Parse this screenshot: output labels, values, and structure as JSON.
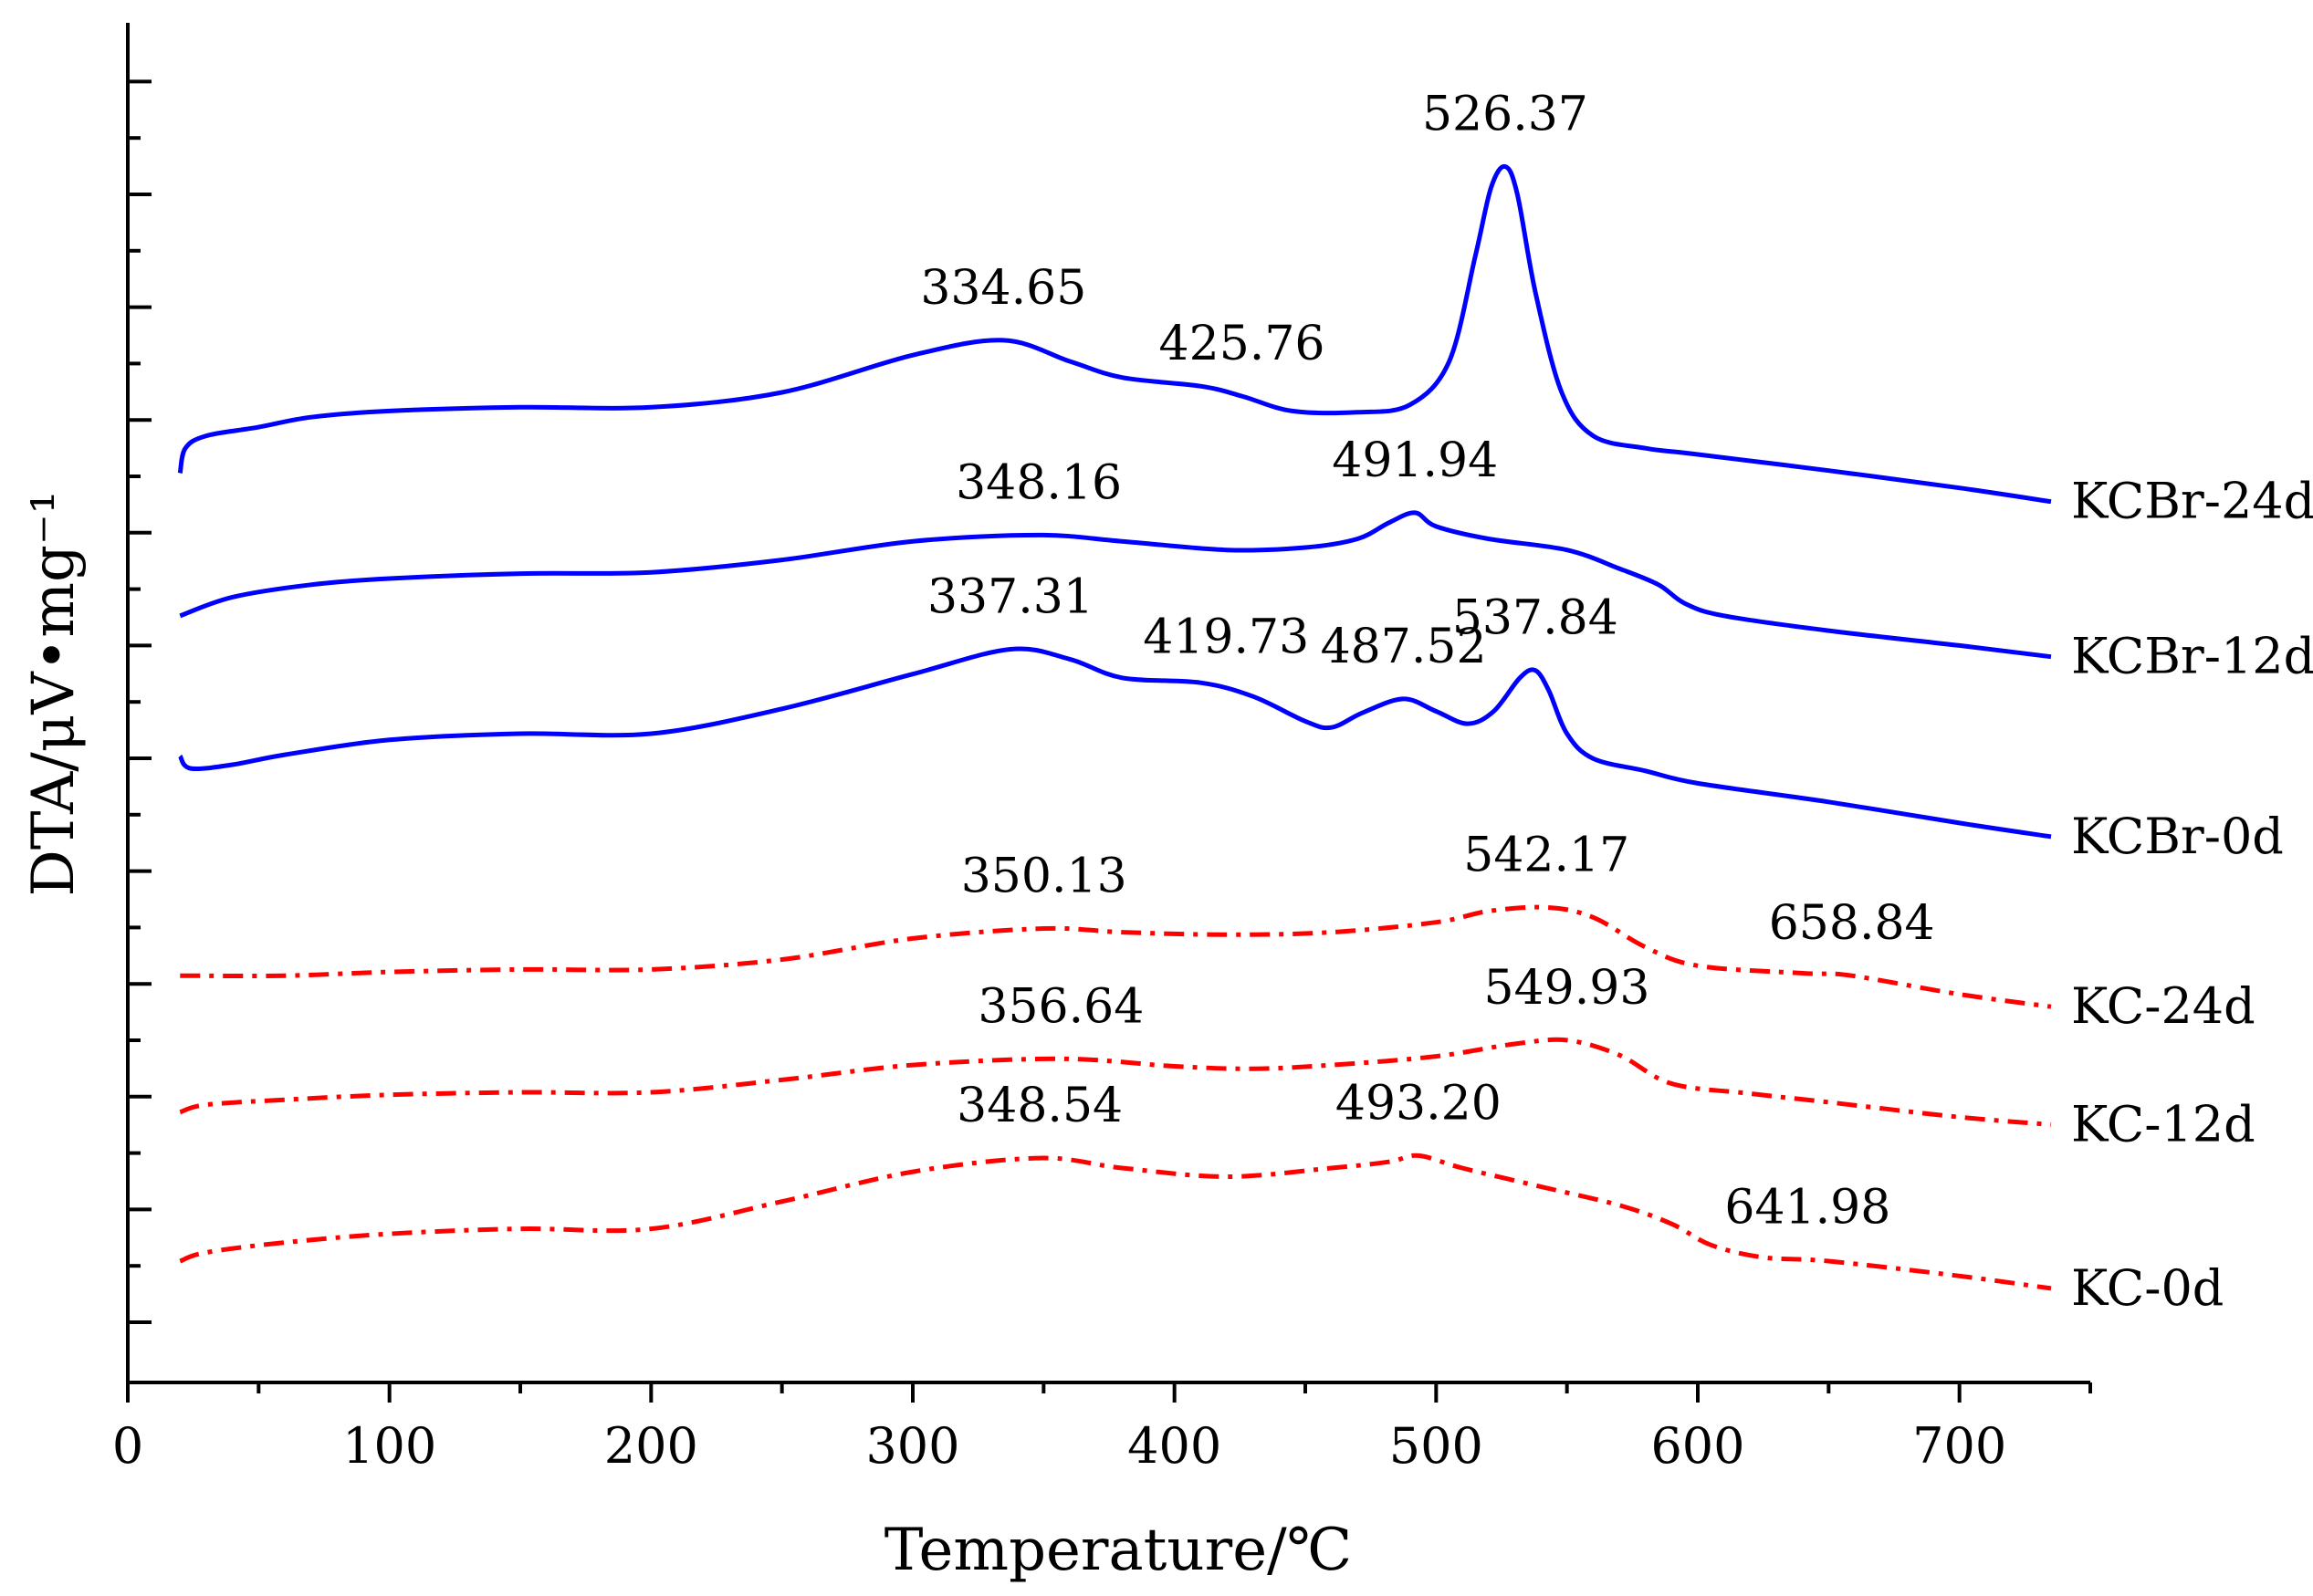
{
  "chart_data": {
    "type": "line",
    "title": "",
    "xlabel": "Temperature/℃",
    "ylabel": "DTA/μV•mg⁻¹",
    "xlim": [
      0,
      750
    ],
    "x_ticks": [
      0,
      100,
      200,
      300,
      400,
      500,
      600,
      700
    ],
    "x_tick_labels": [
      "0",
      "100",
      "200",
      "300",
      "400",
      "500",
      "600",
      "700"
    ],
    "ylim": [
      0,
      100
    ],
    "y_tick_labels_shown": false,
    "grid": false,
    "colors": {
      "KCBr": "#0000ff",
      "KC": "#ff0000",
      "axis": "#000000"
    },
    "series": [
      {
        "name": "KCBr-24d",
        "color": "#0000ff",
        "style": "solid",
        "label": "KCBr-24d",
        "points": [
          [
            20,
            68.5
          ],
          [
            22,
            70.5
          ],
          [
            30,
            71.5
          ],
          [
            50,
            72.2
          ],
          [
            70,
            73.0
          ],
          [
            100,
            73.5
          ],
          [
            150,
            73.8
          ],
          [
            200,
            73.8
          ],
          [
            250,
            75.0
          ],
          [
            300,
            78.0
          ],
          [
            334.65,
            79.2
          ],
          [
            360,
            77.5
          ],
          [
            380,
            76.2
          ],
          [
            410,
            75.5
          ],
          [
            425.76,
            74.7
          ],
          [
            445,
            73.5
          ],
          [
            470,
            73.4
          ],
          [
            490,
            74.0
          ],
          [
            505,
            77.5
          ],
          [
            515,
            86.0
          ],
          [
            521,
            91.5
          ],
          [
            526.37,
            93.2
          ],
          [
            531,
            91.0
          ],
          [
            538,
            83.0
          ],
          [
            548,
            75.0
          ],
          [
            560,
            71.5
          ],
          [
            580,
            70.5
          ],
          [
            600,
            70.0
          ],
          [
            650,
            68.7
          ],
          [
            700,
            67.3
          ],
          [
            735,
            66.2
          ]
        ],
        "peaks": [
          {
            "x": 334.65,
            "label": "334.65"
          },
          {
            "x": 425.76,
            "label": "425.76"
          },
          {
            "x": 526.37,
            "label": "526.37"
          }
        ]
      },
      {
        "name": "KCBr-12d",
        "color": "#0000ff",
        "style": "solid",
        "label": "KCBr-12d",
        "points": [
          [
            20,
            57.0
          ],
          [
            40,
            58.5
          ],
          [
            70,
            59.5
          ],
          [
            100,
            60.0
          ],
          [
            150,
            60.4
          ],
          [
            200,
            60.5
          ],
          [
            250,
            61.5
          ],
          [
            300,
            63.0
          ],
          [
            348.16,
            63.5
          ],
          [
            380,
            63.0
          ],
          [
            420,
            62.3
          ],
          [
            450,
            62.5
          ],
          [
            470,
            63.2
          ],
          [
            482,
            64.5
          ],
          [
            491.94,
            65.3
          ],
          [
            500,
            64.2
          ],
          [
            520,
            63.2
          ],
          [
            550,
            62.3
          ],
          [
            570,
            60.8
          ],
          [
            585,
            59.5
          ],
          [
            595,
            58.0
          ],
          [
            610,
            57.0
          ],
          [
            650,
            55.8
          ],
          [
            700,
            54.6
          ],
          [
            735,
            53.7
          ]
        ],
        "peaks": [
          {
            "x": 348.16,
            "label": "348.16"
          },
          {
            "x": 491.94,
            "label": "491.94"
          }
        ]
      },
      {
        "name": "KCBr-0d",
        "color": "#0000ff",
        "style": "solid",
        "label": "KCBr-0d",
        "points": [
          [
            20,
            45.7
          ],
          [
            24,
            44.7
          ],
          [
            40,
            45.0
          ],
          [
            60,
            45.8
          ],
          [
            100,
            47.0
          ],
          [
            150,
            47.5
          ],
          [
            200,
            47.5
          ],
          [
            250,
            49.5
          ],
          [
            300,
            52.3
          ],
          [
            337.31,
            54.3
          ],
          [
            360,
            53.5
          ],
          [
            380,
            52.0
          ],
          [
            410,
            51.6
          ],
          [
            430,
            50.5
          ],
          [
            450,
            48.5
          ],
          [
            460,
            48.0
          ],
          [
            472,
            49.2
          ],
          [
            487.52,
            50.3
          ],
          [
            500,
            49.3
          ],
          [
            512,
            48.3
          ],
          [
            522,
            49.3
          ],
          [
            532,
            52.0
          ],
          [
            537.84,
            52.6
          ],
          [
            543,
            51.0
          ],
          [
            550,
            47.5
          ],
          [
            560,
            45.5
          ],
          [
            580,
            44.5
          ],
          [
            600,
            43.5
          ],
          [
            650,
            42.0
          ],
          [
            700,
            40.3
          ],
          [
            735,
            39.2
          ]
        ],
        "peaks": [
          {
            "x": 337.31,
            "label": "337.31"
          },
          {
            "x": 419.73,
            "label": "419.73"
          },
          {
            "x": 487.52,
            "label": "487.52"
          },
          {
            "x": 537.84,
            "label": "537.84"
          }
        ]
      },
      {
        "name": "KC-24d",
        "color": "#ff0000",
        "style": "dashdot",
        "label": "KC-24d",
        "points": [
          [
            20,
            28.0
          ],
          [
            60,
            28.0
          ],
          [
            100,
            28.3
          ],
          [
            150,
            28.5
          ],
          [
            200,
            28.5
          ],
          [
            250,
            29.3
          ],
          [
            300,
            31.0
          ],
          [
            350.13,
            31.8
          ],
          [
            380,
            31.5
          ],
          [
            420,
            31.3
          ],
          [
            460,
            31.5
          ],
          [
            500,
            32.3
          ],
          [
            520,
            33.2
          ],
          [
            542.17,
            33.5
          ],
          [
            560,
            32.7
          ],
          [
            580,
            30.3
          ],
          [
            600,
            28.8
          ],
          [
            640,
            28.2
          ],
          [
            658.84,
            28.0
          ],
          [
            700,
            26.5
          ],
          [
            735,
            25.5
          ]
        ],
        "peaks": [
          {
            "x": 350.13,
            "label": "350.13"
          },
          {
            "x": 542.17,
            "label": "542.17"
          },
          {
            "x": 658.84,
            "label": "658.84"
          }
        ]
      },
      {
        "name": "KC-12d",
        "color": "#ff0000",
        "style": "dashdot",
        "label": "KC-12d",
        "points": [
          [
            20,
            17.0
          ],
          [
            30,
            17.6
          ],
          [
            60,
            18.0
          ],
          [
            100,
            18.4
          ],
          [
            150,
            18.6
          ],
          [
            200,
            18.6
          ],
          [
            250,
            19.6
          ],
          [
            300,
            20.8
          ],
          [
            356.64,
            21.3
          ],
          [
            400,
            20.7
          ],
          [
            430,
            20.5
          ],
          [
            460,
            20.8
          ],
          [
            500,
            21.5
          ],
          [
            530,
            22.5
          ],
          [
            549.93,
            22.8
          ],
          [
            570,
            21.6
          ],
          [
            590,
            19.3
          ],
          [
            620,
            18.5
          ],
          [
            650,
            17.8
          ],
          [
            700,
            16.6
          ],
          [
            735,
            16.0
          ]
        ],
        "peaks": [
          {
            "x": 356.64,
            "label": "356.64"
          },
          {
            "x": 549.93,
            "label": "549.93"
          }
        ]
      },
      {
        "name": "KC-0d",
        "color": "#ff0000",
        "style": "dashdot",
        "label": "KC-0d",
        "points": [
          [
            20,
            5.0
          ],
          [
            30,
            5.7
          ],
          [
            60,
            6.5
          ],
          [
            100,
            7.2
          ],
          [
            150,
            7.6
          ],
          [
            200,
            7.6
          ],
          [
            250,
            9.8
          ],
          [
            300,
            12.2
          ],
          [
            348.54,
            13.3
          ],
          [
            380,
            12.5
          ],
          [
            420,
            11.8
          ],
          [
            460,
            12.5
          ],
          [
            482,
            13.0
          ],
          [
            493.2,
            13.5
          ],
          [
            510,
            12.5
          ],
          [
            540,
            11.0
          ],
          [
            570,
            9.5
          ],
          [
            590,
            8.0
          ],
          [
            605,
            6.3
          ],
          [
            625,
            5.3
          ],
          [
            650,
            5.0
          ],
          [
            700,
            3.8
          ],
          [
            735,
            2.8
          ]
        ],
        "peaks": [
          {
            "x": 348.54,
            "label": "348.54"
          },
          {
            "x": 493.2,
            "label": "493.20"
          },
          {
            "x": 641.98,
            "label": "641.98"
          }
        ]
      }
    ]
  }
}
